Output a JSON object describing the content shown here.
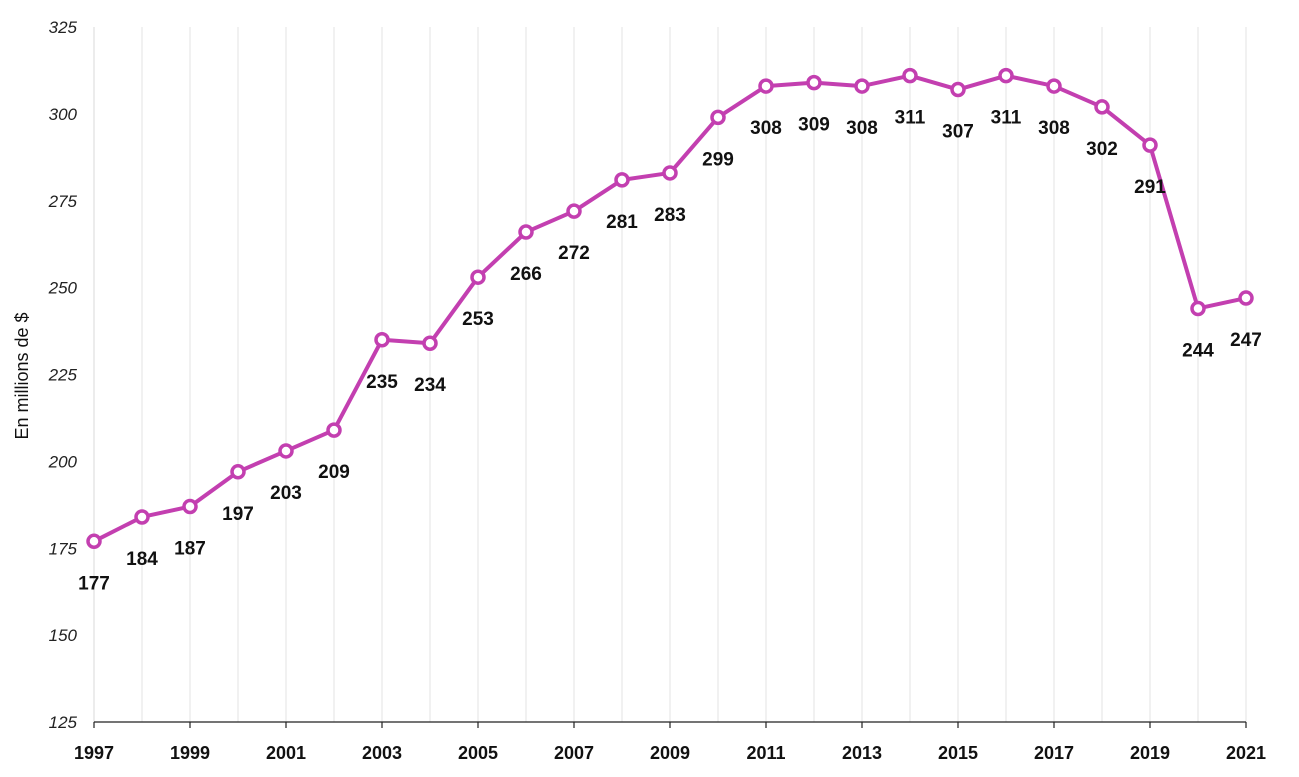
{
  "chart_data": {
    "type": "line",
    "ylabel": "En millions de $",
    "xlabel": "",
    "ylim": [
      125,
      325
    ],
    "yticks": [
      "125",
      "150",
      "175",
      "200",
      "225",
      "250",
      "275",
      "300",
      "325"
    ],
    "x": [
      1997,
      1998,
      1999,
      2000,
      2001,
      2002,
      2003,
      2004,
      2005,
      2006,
      2007,
      2008,
      2009,
      2010,
      2011,
      2012,
      2013,
      2014,
      2015,
      2016,
      2017,
      2018,
      2019,
      2020,
      2021
    ],
    "xtick_labels": [
      "1997",
      "1999",
      "2001",
      "2003",
      "2005",
      "2007",
      "2009",
      "2011",
      "2013",
      "2015",
      "2017",
      "2019",
      "2021"
    ],
    "series": [
      {
        "values": [
          177,
          184,
          187,
          197,
          203,
          209,
          235,
          234,
          253,
          266,
          272,
          281,
          283,
          299,
          308,
          309,
          308,
          311,
          307,
          311,
          308,
          302,
          291,
          244,
          247
        ],
        "labels": [
          "177",
          "184",
          "187",
          "197",
          "203",
          "209",
          "235",
          "234",
          "253",
          "266",
          "272",
          "281",
          "283",
          "299",
          "308",
          "309",
          "308",
          "311",
          "307",
          "311",
          "308",
          "302",
          "291",
          "244",
          "247"
        ],
        "color": "#c33fb0"
      }
    ],
    "grid": "vertical",
    "legend": "none"
  }
}
